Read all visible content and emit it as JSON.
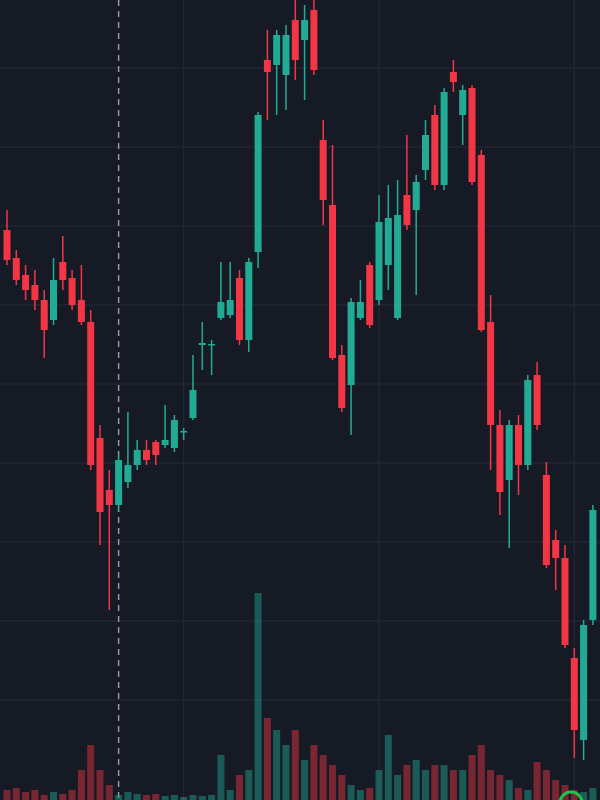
{
  "chart_data": {
    "type": "candlestick",
    "open": [
      570,
      542,
      525,
      515,
      500,
      480,
      538,
      522,
      500,
      478,
      362,
      310,
      295,
      318,
      335,
      350,
      358,
      355,
      352,
      368,
      382,
      455,
      455,
      482,
      485,
      522,
      460,
      548,
      740,
      735,
      725,
      780,
      760,
      790,
      660,
      595,
      445,
      415,
      482,
      535,
      500,
      535,
      482,
      605,
      590,
      630,
      685,
      615,
      728,
      685,
      712,
      645,
      478,
      375,
      320,
      375,
      335,
      425,
      325,
      260,
      242,
      142,
      60,
      180
    ],
    "high": [
      590,
      550,
      535,
      530,
      510,
      542,
      564,
      530,
      535,
      490,
      375,
      330,
      345,
      388,
      360,
      360,
      360,
      395,
      385,
      372,
      445,
      478,
      460,
      538,
      538,
      530,
      542,
      688,
      770,
      770,
      775,
      800,
      795,
      800,
      680,
      655,
      455,
      502,
      520,
      538,
      605,
      615,
      620,
      665,
      625,
      680,
      695,
      712,
      740,
      715,
      715,
      650,
      505,
      390,
      380,
      385,
      425,
      438,
      338,
      270,
      255,
      152,
      180,
      295
    ],
    "low": [
      535,
      515,
      500,
      490,
      442,
      475,
      510,
      490,
      475,
      330,
      255,
      190,
      290,
      312,
      330,
      335,
      335,
      352,
      348,
      360,
      380,
      430,
      425,
      480,
      482,
      455,
      448,
      532,
      680,
      685,
      690,
      720,
      700,
      725,
      575,
      440,
      388,
      365,
      480,
      472,
      495,
      510,
      480,
      570,
      505,
      620,
      610,
      610,
      708,
      655,
      615,
      468,
      330,
      285,
      252,
      305,
      330,
      370,
      232,
      210,
      152,
      42,
      40,
      175
    ],
    "close": [
      540,
      520,
      510,
      500,
      470,
      520,
      520,
      495,
      478,
      335,
      288,
      295,
      340,
      335,
      350,
      340,
      345,
      360,
      380,
      369,
      410,
      457,
      456,
      498,
      500,
      460,
      538,
      685,
      728,
      765,
      765,
      740,
      780,
      730,
      600,
      442,
      392,
      498,
      498,
      475,
      578,
      582,
      585,
      575,
      618,
      665,
      615,
      708,
      718,
      710,
      618,
      470,
      375,
      308,
      375,
      335,
      420,
      375,
      235,
      242,
      155,
      70,
      175,
      290
    ],
    "volume": [
      10,
      12,
      8,
      10,
      5,
      8,
      6,
      10,
      30,
      55,
      30,
      15,
      5,
      8,
      6,
      5,
      6,
      4,
      5,
      3,
      5,
      4,
      5,
      45,
      10,
      25,
      30,
      207,
      82,
      70,
      55,
      70,
      40,
      55,
      45,
      35,
      25,
      15,
      10,
      12,
      30,
      65,
      25,
      35,
      40,
      30,
      35,
      35,
      30,
      30,
      45,
      55,
      30,
      25,
      20,
      12,
      10,
      38,
      30,
      20,
      15,
      10,
      8,
      12
    ],
    "up_color": "#22ab94",
    "down_color": "#f23645",
    "ylim": [
      0,
      800
    ],
    "yticks": [
      732,
      653,
      574,
      495,
      416,
      337,
      258,
      179,
      100
    ],
    "y2lim": [
      0,
      800
    ],
    "xticks": [
      19,
      40,
      61
    ],
    "crosshair": 12,
    "grid": true
  }
}
